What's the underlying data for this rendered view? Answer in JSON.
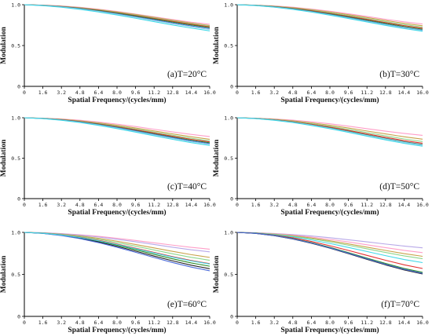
{
  "chart_data": [
    {
      "type": "line",
      "caption": "(a)T=20°C",
      "xlabel": "Spatial Frequency/(cycles/mm)",
      "ylabel": "Modulation",
      "xlim": [
        0,
        16
      ],
      "ylim": [
        0,
        1
      ],
      "xticks": [
        "0",
        "1.6",
        "3.2",
        "4.8",
        "6.4",
        "8.0",
        "9.6",
        "11.2",
        "12.8",
        "14.4",
        "16.0"
      ],
      "yticks": [
        "0",
        "0.5",
        "1.0"
      ],
      "x": [
        0,
        1.6,
        3.2,
        4.8,
        6.4,
        8.0,
        9.6,
        11.2,
        12.8,
        14.4,
        16.0
      ],
      "series": [
        {
          "color": "#ff9ec8",
          "values": [
            1.0,
            0.995,
            0.985,
            0.968,
            0.945,
            0.918,
            0.886,
            0.852,
            0.818,
            0.786,
            0.76
          ]
        },
        {
          "color": "#c8a24a",
          "values": [
            1.0,
            0.994,
            0.982,
            0.964,
            0.94,
            0.912,
            0.88,
            0.846,
            0.81,
            0.776,
            0.745
          ]
        },
        {
          "color": "#8fd68c",
          "values": [
            1.0,
            0.994,
            0.98,
            0.961,
            0.936,
            0.906,
            0.873,
            0.838,
            0.802,
            0.768,
            0.737
          ]
        },
        {
          "color": "#e53030",
          "values": [
            1.0,
            0.993,
            0.978,
            0.958,
            0.932,
            0.901,
            0.867,
            0.831,
            0.795,
            0.76,
            0.728
          ]
        },
        {
          "color": "#2a8a2a",
          "values": [
            1.0,
            0.992,
            0.976,
            0.955,
            0.928,
            0.896,
            0.861,
            0.824,
            0.787,
            0.752,
            0.72
          ]
        },
        {
          "color": "#4a6ad8",
          "values": [
            1.0,
            0.991,
            0.974,
            0.951,
            0.922,
            0.889,
            0.852,
            0.814,
            0.776,
            0.74,
            0.708
          ]
        },
        {
          "color": "#9ad8e8",
          "values": [
            1.0,
            0.99,
            0.972,
            0.948,
            0.918,
            0.883,
            0.845,
            0.806,
            0.767,
            0.73,
            0.696
          ]
        },
        {
          "color": "#40d8e8",
          "values": [
            1.0,
            0.989,
            0.969,
            0.943,
            0.911,
            0.874,
            0.834,
            0.793,
            0.752,
            0.714,
            0.68
          ]
        }
      ]
    },
    {
      "type": "line",
      "caption": "(b)T=30°C",
      "xlabel": "Spatial Frequency/(cycles/mm)",
      "ylabel": "Modulation",
      "xlim": [
        0,
        16
      ],
      "ylim": [
        0,
        1
      ],
      "xticks": [
        "0",
        "1.6",
        "3.2",
        "4.8",
        "6.4",
        "8.0",
        "9.6",
        "11.2",
        "12.8",
        "14.4",
        "16.0"
      ],
      "yticks": [
        "0",
        "0.5",
        "1.0"
      ],
      "x": [
        0,
        1.6,
        3.2,
        4.8,
        6.4,
        8.0,
        9.6,
        11.2,
        12.8,
        14.4,
        16.0
      ],
      "series": [
        {
          "color": "#ff9ec8",
          "values": [
            1.0,
            0.995,
            0.985,
            0.969,
            0.947,
            0.92,
            0.889,
            0.856,
            0.822,
            0.79,
            0.764
          ]
        },
        {
          "color": "#c8a24a",
          "values": [
            1.0,
            0.994,
            0.982,
            0.964,
            0.94,
            0.911,
            0.878,
            0.843,
            0.807,
            0.772,
            0.742
          ]
        },
        {
          "color": "#8fd68c",
          "values": [
            1.0,
            0.993,
            0.979,
            0.959,
            0.933,
            0.902,
            0.867,
            0.83,
            0.793,
            0.757,
            0.725
          ]
        },
        {
          "color": "#e53030",
          "values": [
            1.0,
            0.992,
            0.977,
            0.955,
            0.927,
            0.894,
            0.858,
            0.82,
            0.781,
            0.744,
            0.712
          ]
        },
        {
          "color": "#2a8a2a",
          "values": [
            1.0,
            0.992,
            0.975,
            0.952,
            0.922,
            0.888,
            0.85,
            0.811,
            0.771,
            0.733,
            0.7
          ]
        },
        {
          "color": "#4a6ad8",
          "values": [
            1.0,
            0.991,
            0.973,
            0.948,
            0.917,
            0.881,
            0.842,
            0.801,
            0.76,
            0.721,
            0.688
          ]
        },
        {
          "color": "#9ad8e8",
          "values": [
            1.0,
            0.99,
            0.971,
            0.945,
            0.913,
            0.876,
            0.836,
            0.795,
            0.754,
            0.715,
            0.682
          ]
        },
        {
          "color": "#40d8e8",
          "values": [
            1.0,
            0.99,
            0.97,
            0.943,
            0.91,
            0.872,
            0.831,
            0.789,
            0.747,
            0.708,
            0.675
          ]
        }
      ]
    },
    {
      "type": "line",
      "caption": "(c)T=40°C",
      "xlabel": "Spatial Frequency/(cycles/mm)",
      "ylabel": "Modulation",
      "xlim": [
        0,
        16
      ],
      "ylim": [
        0,
        1
      ],
      "xticks": [
        "0",
        "1.6",
        "3.2",
        "4.8",
        "6.4",
        "8.0",
        "9.6",
        "11.2",
        "12.8",
        "14.4",
        "16.0"
      ],
      "yticks": [
        "0",
        "0.5",
        "1.0"
      ],
      "x": [
        0,
        1.6,
        3.2,
        4.8,
        6.4,
        8.0,
        9.6,
        11.2,
        12.8,
        14.4,
        16.0
      ],
      "series": [
        {
          "color": "#ff9ec8",
          "values": [
            1.0,
            0.995,
            0.985,
            0.969,
            0.947,
            0.921,
            0.891,
            0.858,
            0.825,
            0.794,
            0.768
          ]
        },
        {
          "color": "#c8a24a",
          "values": [
            1.0,
            0.994,
            0.981,
            0.962,
            0.937,
            0.907,
            0.873,
            0.837,
            0.8,
            0.765,
            0.734
          ]
        },
        {
          "color": "#8fd68c",
          "values": [
            1.0,
            0.993,
            0.978,
            0.957,
            0.93,
            0.897,
            0.861,
            0.822,
            0.783,
            0.746,
            0.714
          ]
        },
        {
          "color": "#e53030",
          "values": [
            1.0,
            0.992,
            0.976,
            0.953,
            0.924,
            0.889,
            0.851,
            0.811,
            0.771,
            0.733,
            0.701
          ]
        },
        {
          "color": "#2a8a2a",
          "values": [
            1.0,
            0.991,
            0.974,
            0.95,
            0.919,
            0.883,
            0.843,
            0.802,
            0.761,
            0.722,
            0.69
          ]
        },
        {
          "color": "#4a6ad8",
          "values": [
            1.0,
            0.991,
            0.973,
            0.947,
            0.915,
            0.878,
            0.837,
            0.795,
            0.753,
            0.713,
            0.68
          ]
        },
        {
          "color": "#9ad8e8",
          "values": [
            1.0,
            0.99,
            0.971,
            0.944,
            0.911,
            0.872,
            0.83,
            0.787,
            0.744,
            0.704,
            0.671
          ]
        },
        {
          "color": "#40d8e8",
          "values": [
            1.0,
            0.99,
            0.969,
            0.941,
            0.906,
            0.866,
            0.822,
            0.777,
            0.733,
            0.692,
            0.658
          ]
        }
      ]
    },
    {
      "type": "line",
      "caption": "(d)T=50°C",
      "xlabel": "Spatial Frequency/(cycles/mm)",
      "ylabel": "Modulation",
      "xlim": [
        0,
        16
      ],
      "ylim": [
        0,
        1
      ],
      "xticks": [
        "0",
        "1.6",
        "3.2",
        "4.8",
        "6.4",
        "8.0",
        "9.6",
        "11.2",
        "12.8",
        "14.4",
        "16.0"
      ],
      "yticks": [
        "0",
        "0.5",
        "1.0"
      ],
      "x": [
        0,
        1.6,
        3.2,
        4.8,
        6.4,
        8.0,
        9.6,
        11.2,
        12.8,
        14.4,
        16.0
      ],
      "series": [
        {
          "color": "#ff9ec8",
          "values": [
            1.0,
            0.995,
            0.985,
            0.97,
            0.95,
            0.925,
            0.896,
            0.865,
            0.834,
            0.806,
            0.782
          ]
        },
        {
          "color": "#c8a24a",
          "values": [
            1.0,
            0.994,
            0.981,
            0.962,
            0.937,
            0.907,
            0.873,
            0.836,
            0.8,
            0.765,
            0.735
          ]
        },
        {
          "color": "#8fd68c",
          "values": [
            1.0,
            0.993,
            0.978,
            0.956,
            0.928,
            0.894,
            0.856,
            0.816,
            0.776,
            0.738,
            0.706
          ]
        },
        {
          "color": "#e53030",
          "values": [
            1.0,
            0.992,
            0.975,
            0.951,
            0.92,
            0.884,
            0.843,
            0.8,
            0.758,
            0.718,
            0.685
          ]
        },
        {
          "color": "#2a8a2a",
          "values": [
            1.0,
            0.991,
            0.973,
            0.947,
            0.914,
            0.876,
            0.833,
            0.789,
            0.745,
            0.704,
            0.67
          ]
        },
        {
          "color": "#4a6ad8",
          "values": [
            1.0,
            0.991,
            0.972,
            0.945,
            0.911,
            0.872,
            0.829,
            0.784,
            0.74,
            0.699,
            0.665
          ]
        },
        {
          "color": "#9ad8e8",
          "values": [
            1.0,
            0.99,
            0.971,
            0.944,
            0.91,
            0.87,
            0.826,
            0.781,
            0.737,
            0.695,
            0.661
          ]
        },
        {
          "color": "#40d8e8",
          "values": [
            1.0,
            0.99,
            0.969,
            0.941,
            0.905,
            0.864,
            0.819,
            0.772,
            0.726,
            0.684,
            0.649
          ]
        }
      ]
    },
    {
      "type": "line",
      "caption": "(e)T=60°C",
      "xlabel": "Spatial Frequency/(cycles/mm)",
      "ylabel": "Modulation",
      "xlim": [
        0,
        16
      ],
      "ylim": [
        0,
        1
      ],
      "xticks": [
        "0",
        "1.6",
        "3.2",
        "4.8",
        "6.4",
        "8.0",
        "9.6",
        "11.2",
        "12.8",
        "14.4",
        "16.0"
      ],
      "yticks": [
        "0",
        "0.5",
        "1.0"
      ],
      "x": [
        0,
        1.6,
        3.2,
        4.8,
        6.4,
        8.0,
        9.6,
        11.2,
        12.8,
        14.4,
        16.0
      ],
      "series": [
        {
          "color": "#ff9ec8",
          "values": [
            1.0,
            0.996,
            0.986,
            0.972,
            0.953,
            0.93,
            0.904,
            0.876,
            0.848,
            0.822,
            0.8
          ]
        },
        {
          "color": "#b8a8e8",
          "values": [
            1.0,
            0.995,
            0.984,
            0.967,
            0.945,
            0.918,
            0.888,
            0.856,
            0.823,
            0.793,
            0.768
          ]
        },
        {
          "color": "#c8a24a",
          "values": [
            1.0,
            0.993,
            0.979,
            0.957,
            0.929,
            0.895,
            0.856,
            0.815,
            0.774,
            0.735,
            0.702
          ]
        },
        {
          "color": "#8fd68c",
          "values": [
            1.0,
            0.992,
            0.975,
            0.95,
            0.918,
            0.879,
            0.836,
            0.79,
            0.745,
            0.703,
            0.668
          ]
        },
        {
          "color": "#e53030",
          "values": [
            1.0,
            0.991,
            0.971,
            0.942,
            0.905,
            0.861,
            0.812,
            0.761,
            0.711,
            0.665,
            0.628
          ]
        },
        {
          "color": "#2a8a2a",
          "values": [
            1.0,
            0.99,
            0.968,
            0.936,
            0.895,
            0.847,
            0.794,
            0.739,
            0.685,
            0.636,
            0.597
          ]
        },
        {
          "color": "#222222",
          "values": [
            1.0,
            0.989,
            0.965,
            0.93,
            0.886,
            0.834,
            0.777,
            0.718,
            0.661,
            0.609,
            0.567
          ]
        },
        {
          "color": "#4a6ad8",
          "values": [
            1.0,
            0.988,
            0.962,
            0.925,
            0.878,
            0.823,
            0.763,
            0.701,
            0.641,
            0.587,
            0.543
          ]
        },
        {
          "color": "#40d8e8",
          "values": [
            1.0,
            0.99,
            0.969,
            0.939,
            0.9,
            0.855,
            0.806,
            0.755,
            0.705,
            0.66,
            0.623
          ]
        }
      ]
    },
    {
      "type": "line",
      "caption": "(f)T=70°C",
      "xlabel": "Spatial Frequency/(cycles/mm)",
      "ylabel": "Modulation",
      "xlim": [
        0,
        16
      ],
      "ylim": [
        0,
        1
      ],
      "xticks": [
        "0",
        "1.6",
        "3.2",
        "4.8",
        "6.4",
        "8.0",
        "9.6",
        "11.2",
        "12.8",
        "14.4",
        "16.0"
      ],
      "yticks": [
        "0",
        "0.5",
        "1.0"
      ],
      "x": [
        0,
        1.6,
        3.2,
        4.8,
        6.4,
        8.0,
        9.6,
        11.2,
        12.8,
        14.4,
        16.0
      ],
      "series": [
        {
          "color": "#b8a8e8",
          "values": [
            1.0,
            0.996,
            0.987,
            0.974,
            0.957,
            0.936,
            0.912,
            0.887,
            0.861,
            0.837,
            0.816
          ]
        },
        {
          "color": "#ff9ec8",
          "values": [
            1.0,
            0.995,
            0.984,
            0.967,
            0.944,
            0.917,
            0.886,
            0.852,
            0.818,
            0.786,
            0.759
          ]
        },
        {
          "color": "#c8a24a",
          "values": [
            1.0,
            0.994,
            0.98,
            0.96,
            0.933,
            0.9,
            0.863,
            0.824,
            0.785,
            0.747,
            0.715
          ]
        },
        {
          "color": "#8fd68c",
          "values": [
            1.0,
            0.993,
            0.977,
            0.954,
            0.924,
            0.888,
            0.847,
            0.804,
            0.761,
            0.72,
            0.686
          ]
        },
        {
          "color": "#40d8e8",
          "values": [
            1.0,
            0.992,
            0.973,
            0.946,
            0.91,
            0.868,
            0.821,
            0.772,
            0.723,
            0.677,
            0.64
          ]
        },
        {
          "color": "#e53030",
          "values": [
            1.0,
            0.99,
            0.968,
            0.935,
            0.892,
            0.841,
            0.785,
            0.726,
            0.668,
            0.614,
            0.57
          ]
        },
        {
          "color": "#2a8a2a",
          "values": [
            1.0,
            0.989,
            0.964,
            0.926,
            0.878,
            0.822,
            0.759,
            0.694,
            0.63,
            0.571,
            0.524
          ]
        },
        {
          "color": "#222222",
          "values": [
            1.0,
            0.988,
            0.961,
            0.921,
            0.871,
            0.812,
            0.747,
            0.679,
            0.613,
            0.553,
            0.505
          ]
        },
        {
          "color": "#4a6ad8",
          "values": [
            1.0,
            0.988,
            0.962,
            0.923,
            0.874,
            0.816,
            0.752,
            0.685,
            0.62,
            0.56,
            0.512
          ]
        }
      ]
    }
  ]
}
